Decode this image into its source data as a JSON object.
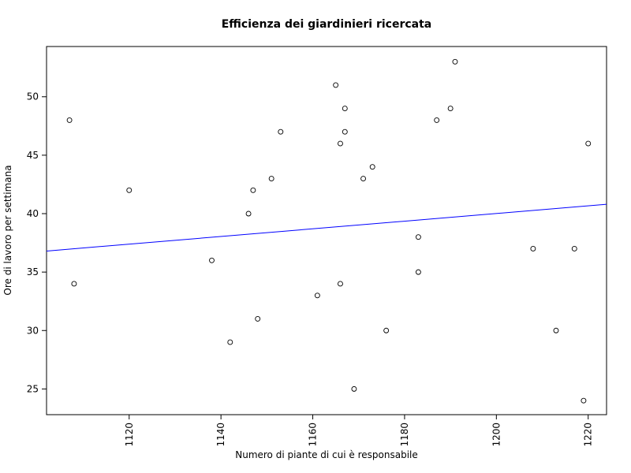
{
  "chart_data": {
    "type": "scatter",
    "title": "Efficienza dei giardinieri ricercata",
    "xlabel": "Numero di piante di cui è responsabile",
    "ylabel": "Ore di lavoro per settimana",
    "xlim": [
      1102,
      1224
    ],
    "ylim": [
      22.8,
      54.3
    ],
    "xticks": [
      1120,
      1140,
      1160,
      1180,
      1200,
      1220
    ],
    "yticks": [
      25,
      30,
      35,
      40,
      45,
      50
    ],
    "grid": false,
    "point_color": "#000000",
    "line_color": "#0000ff",
    "points": [
      {
        "x": 1107,
        "y": 48
      },
      {
        "x": 1108,
        "y": 34
      },
      {
        "x": 1120,
        "y": 42
      },
      {
        "x": 1138,
        "y": 36
      },
      {
        "x": 1142,
        "y": 29
      },
      {
        "x": 1146,
        "y": 40
      },
      {
        "x": 1147,
        "y": 42
      },
      {
        "x": 1148,
        "y": 31
      },
      {
        "x": 1151,
        "y": 43
      },
      {
        "x": 1153,
        "y": 47
      },
      {
        "x": 1161,
        "y": 33
      },
      {
        "x": 1165,
        "y": 51
      },
      {
        "x": 1166,
        "y": 46
      },
      {
        "x": 1166,
        "y": 34
      },
      {
        "x": 1167,
        "y": 49
      },
      {
        "x": 1167,
        "y": 47
      },
      {
        "x": 1169,
        "y": 25
      },
      {
        "x": 1171,
        "y": 43
      },
      {
        "x": 1173,
        "y": 44
      },
      {
        "x": 1176,
        "y": 30
      },
      {
        "x": 1183,
        "y": 38
      },
      {
        "x": 1183,
        "y": 35
      },
      {
        "x": 1187,
        "y": 48
      },
      {
        "x": 1190,
        "y": 49
      },
      {
        "x": 1191,
        "y": 53
      },
      {
        "x": 1208,
        "y": 37
      },
      {
        "x": 1213,
        "y": 30
      },
      {
        "x": 1217,
        "y": 37
      },
      {
        "x": 1219,
        "y": 24
      },
      {
        "x": 1220,
        "y": 46
      }
    ],
    "regression_line": {
      "x": [
        1102,
        1224
      ],
      "y": [
        36.8,
        40.8
      ]
    }
  }
}
